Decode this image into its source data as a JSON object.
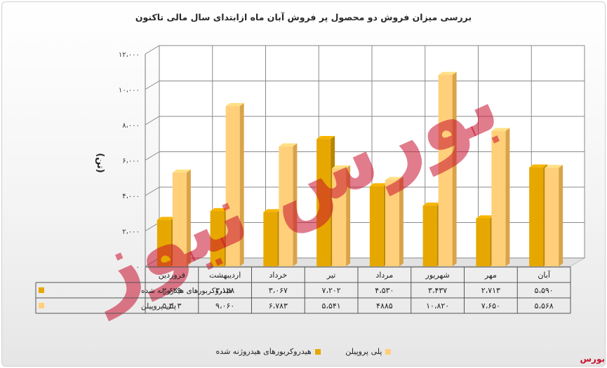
{
  "title": "بررسی میزان فروش دو محصول پر فروش آبان ماه ازابتدای سال مالی تاکنون",
  "watermark_text": "بورس نیوز",
  "credit": "بورس نیوز",
  "colors": {
    "series1": "#e6a800",
    "series1_side": "#b88400",
    "series2": "#ffcf7a",
    "series2_side": "#d9a34a",
    "watermark": "#c8102e"
  },
  "chart_data": {
    "type": "bar",
    "ylabel": "(تن)",
    "ylim": [
      0,
      12000
    ],
    "ytick_values": [
      0,
      2000,
      4000,
      6000,
      8000,
      10000,
      12000
    ],
    "ytick_labels": [
      "۰",
      "۲،۰۰۰",
      "۴،۰۰۰",
      "۶،۰۰۰",
      "۸،۰۰۰",
      "۱۰،۰۰۰",
      "۱۲،۰۰۰"
    ],
    "grid": true,
    "categories": [
      "فروردین",
      "اردیبهشت",
      "خرداد",
      "تیر",
      "مرداد",
      "شهریور",
      "مهر",
      "آبان"
    ],
    "series": [
      {
        "name": "هیدروکربورهای هیدروژنه شده",
        "values": [
          2629,
          3128,
          3067,
          7202,
          4530,
          3437,
          2713,
          5590
        ],
        "labels": [
          "۲،۶۲۹",
          "۳،۱۲۸",
          "۳،۰۶۷",
          "۷،۲۰۲",
          "۴،۵۳۰",
          "۳،۴۳۷",
          "۲،۷۱۳",
          "۵،۵۹۰"
        ]
      },
      {
        "name": "پلی پروپیلن",
        "values": [
          5303,
          9060,
          6783,
          5541,
          4885,
          10820,
          7650,
          5568
        ],
        "labels": [
          "۵،۳۰۳",
          "۹،۰۶۰",
          "۶،۷۸۳",
          "۵،۵۴۱",
          "۴۸۸۵",
          "۱۰،۸۲۰",
          "۷،۶۵۰",
          "۵،۵۶۸"
        ]
      }
    ],
    "legend_position": "bottom"
  }
}
